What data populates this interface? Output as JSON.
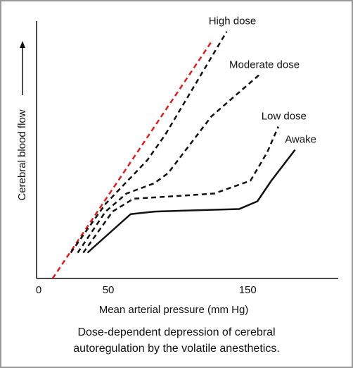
{
  "chart_data": {
    "type": "line",
    "xlabel": "Mean arterial pressure (mm Hg)",
    "ylabel": "Cerebral blood flow",
    "caption": [
      "Dose-dependent depression of cerebral",
      "autoregulation by the volatile anesthetics."
    ],
    "xlim": [
      0,
      215
    ],
    "xticks": [
      0,
      50,
      150
    ],
    "ylim": [
      0,
      100
    ],
    "series": [
      {
        "color": "#d42020",
        "dash": true,
        "x": [
          10,
          124
        ],
        "values": [
          0,
          92
        ]
      },
      {
        "name": "High dose",
        "color": "#111111",
        "dash": true,
        "x": [
          23,
          48,
          71,
          78,
          91,
          135
        ],
        "values": [
          10,
          29,
          42,
          46,
          56,
          96
        ]
      },
      {
        "name": "Moderate dose",
        "color": "#111111",
        "dash": true,
        "x": [
          28,
          48,
          63,
          83,
          93,
          124,
          158
        ],
        "values": [
          10,
          26,
          33,
          37,
          41,
          63,
          79
        ]
      },
      {
        "name": "Low dose",
        "color": "#111111",
        "dash": true,
        "x": [
          32,
          53,
          68,
          98,
          126,
          152,
          164,
          172
        ],
        "values": [
          10,
          26,
          31,
          32,
          33,
          38,
          49,
          59
        ]
      },
      {
        "name": "Awake",
        "color": "#111111",
        "dash": false,
        "x": [
          35,
          66,
          83,
          144,
          157,
          167,
          184
        ],
        "values": [
          10,
          25,
          26,
          27,
          30,
          38,
          50
        ]
      }
    ]
  }
}
